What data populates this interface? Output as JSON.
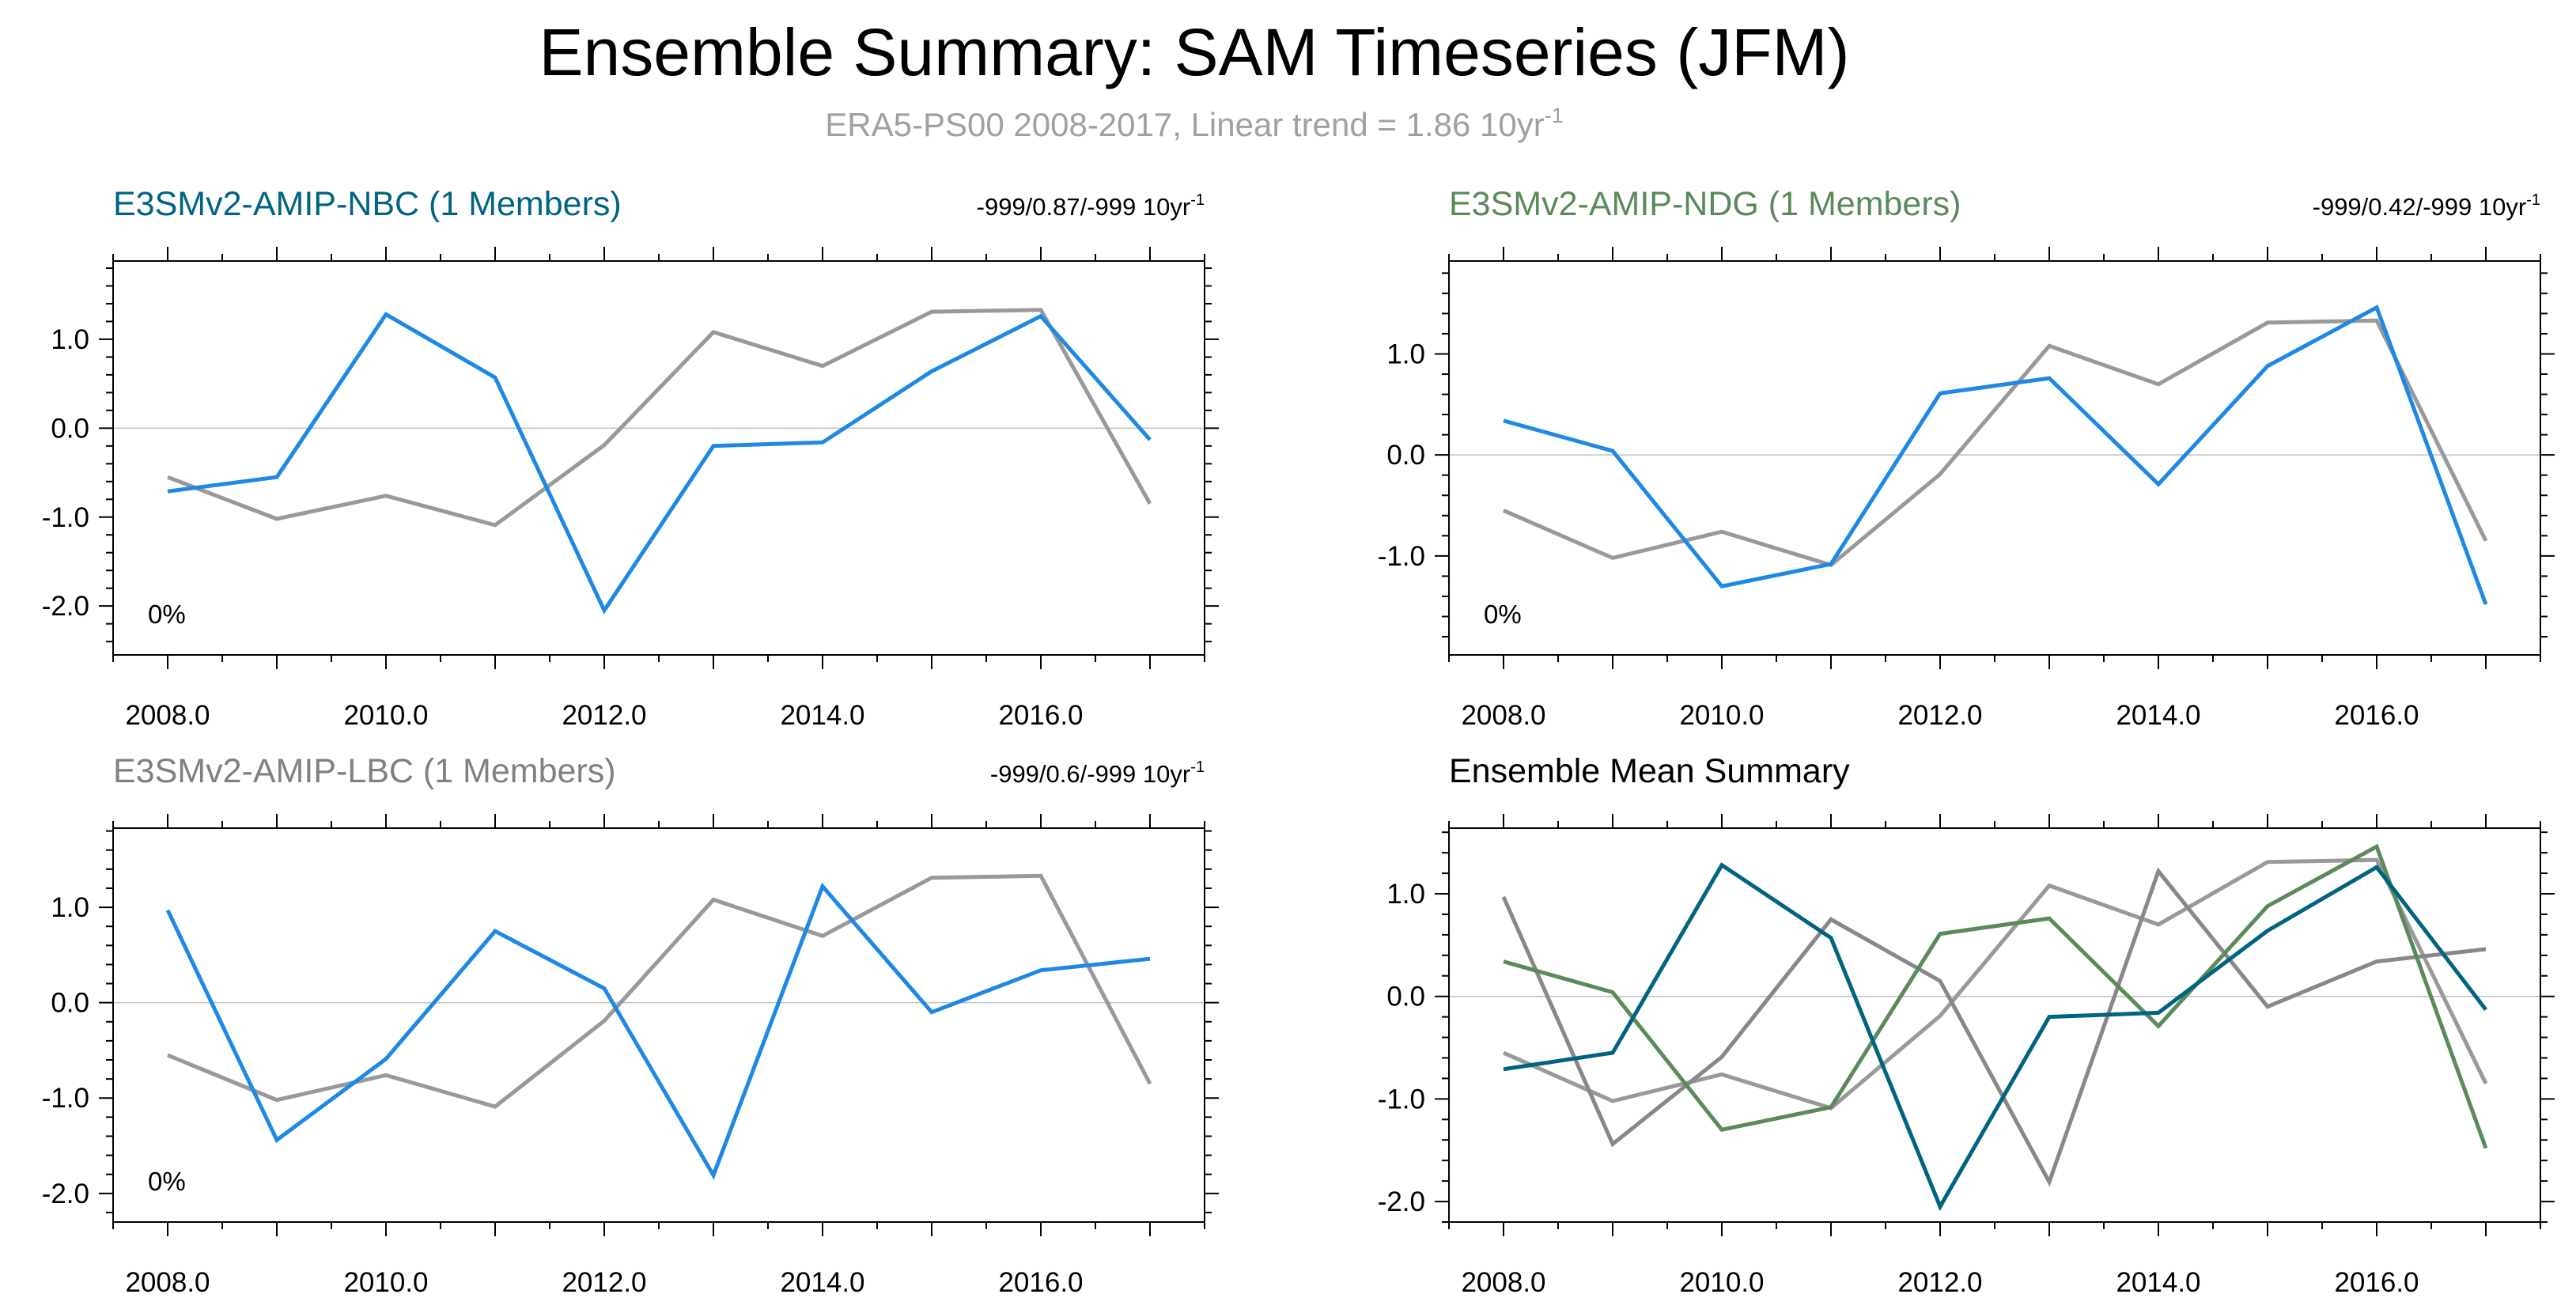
{
  "title": "Ensemble Summary: SAM Timeseries (JFM)",
  "subtitle": "ERA5-PS00 2008-2017, Linear trend = 1.86 10yr",
  "subtitle_sup": "-1",
  "colors": {
    "nbc": "#006480",
    "ndg": "#5a8a5a",
    "lbc": "#808080",
    "model_line": "#1e88e5",
    "obs_line": "#999999",
    "mean_lbc": "#888888",
    "axis": "#000000",
    "zero_line": "#c0c0c0"
  },
  "chart_data": [
    {
      "type": "line",
      "title": "E3SMv2-AMIP-NBC (1 Members)",
      "title_color_key": "nbc",
      "trend_label": "-999/0.87/-999 10yr",
      "trend_sup": "-1",
      "percent_label": "0%",
      "x": [
        2008,
        2009,
        2010,
        2011,
        2012,
        2013,
        2014,
        2015,
        2016,
        2017
      ],
      "xlim": [
        2007.5,
        2017.5
      ],
      "ylim": [
        -2.55,
        1.88
      ],
      "xticks": [
        2008,
        2010,
        2012,
        2014,
        2016
      ],
      "xtick_labels": [
        "2008.0",
        "2010.0",
        "2012.0",
        "2014.0",
        "2016.0"
      ],
      "yticks": [
        1.0,
        0.0,
        -1.0,
        -2.0
      ],
      "ytick_labels": [
        "1.0",
        "0.0",
        "-1.0",
        "-2.0"
      ],
      "series": [
        {
          "name": "ERA5-PS00",
          "color_key": "obs_line",
          "values": [
            -0.55,
            -1.02,
            -0.76,
            -1.09,
            -0.19,
            1.08,
            0.7,
            1.31,
            1.33,
            -0.85
          ]
        },
        {
          "name": "E3SMv2-AMIP-NBC",
          "color_key": "model_line",
          "values": [
            -0.71,
            -0.55,
            1.28,
            0.57,
            -2.05,
            -0.2,
            -0.16,
            0.64,
            1.26,
            -0.13
          ]
        }
      ]
    },
    {
      "type": "line",
      "title": "E3SMv2-AMIP-NDG (1 Members)",
      "title_color_key": "ndg",
      "trend_label": "-999/0.42/-999 10yr",
      "trend_sup": "-1",
      "percent_label": "0%",
      "x": [
        2008,
        2009,
        2010,
        2011,
        2012,
        2013,
        2014,
        2015,
        2016,
        2017
      ],
      "xlim": [
        2007.5,
        2017.5
      ],
      "ylim": [
        -1.98,
        1.92
      ],
      "xticks": [
        2008,
        2010,
        2012,
        2014,
        2016
      ],
      "xtick_labels": [
        "2008.0",
        "2010.0",
        "2012.0",
        "2014.0",
        "2016.0"
      ],
      "yticks": [
        1.0,
        0.0,
        -1.0
      ],
      "ytick_labels": [
        "1.0",
        "0.0",
        "-1.0"
      ],
      "series": [
        {
          "name": "ERA5-PS00",
          "color_key": "obs_line",
          "values": [
            -0.55,
            -1.02,
            -0.76,
            -1.09,
            -0.19,
            1.08,
            0.7,
            1.31,
            1.33,
            -0.85
          ]
        },
        {
          "name": "E3SMv2-AMIP-NDG",
          "color_key": "model_line",
          "values": [
            0.34,
            0.04,
            -1.3,
            -1.08,
            0.61,
            0.76,
            -0.29,
            0.88,
            1.46,
            -1.48
          ]
        }
      ]
    },
    {
      "type": "line",
      "title": "E3SMv2-AMIP-LBC (1 Members)",
      "title_color_key": "lbc",
      "trend_label": "-999/0.6/-999 10yr",
      "trend_sup": "-1",
      "percent_label": "0%",
      "x": [
        2008,
        2009,
        2010,
        2011,
        2012,
        2013,
        2014,
        2015,
        2016,
        2017
      ],
      "xlim": [
        2007.5,
        2017.5
      ],
      "ylim": [
        -2.3,
        1.83
      ],
      "xticks": [
        2008,
        2010,
        2012,
        2014,
        2016
      ],
      "xtick_labels": [
        "2008.0",
        "2010.0",
        "2012.0",
        "2014.0",
        "2016.0"
      ],
      "yticks": [
        1.0,
        0.0,
        -1.0,
        -2.0
      ],
      "ytick_labels": [
        "1.0",
        "0.0",
        "-1.0",
        "-2.0"
      ],
      "series": [
        {
          "name": "ERA5-PS00",
          "color_key": "obs_line",
          "values": [
            -0.55,
            -1.02,
            -0.76,
            -1.09,
            -0.19,
            1.08,
            0.7,
            1.31,
            1.33,
            -0.85
          ]
        },
        {
          "name": "E3SMv2-AMIP-LBC",
          "color_key": "model_line",
          "values": [
            0.97,
            -1.44,
            -0.59,
            0.75,
            0.15,
            -1.81,
            1.22,
            -0.1,
            0.34,
            0.46
          ]
        }
      ]
    },
    {
      "type": "line",
      "title": "Ensemble Mean Summary",
      "title_color_key": "axis",
      "trend_label": "",
      "trend_sup": "",
      "percent_label": "",
      "x": [
        2008,
        2009,
        2010,
        2011,
        2012,
        2013,
        2014,
        2015,
        2016,
        2017
      ],
      "xlim": [
        2007.5,
        2017.5
      ],
      "ylim": [
        -2.2,
        1.64
      ],
      "xticks": [
        2008,
        2010,
        2012,
        2014,
        2016
      ],
      "xtick_labels": [
        "2008.0",
        "2010.0",
        "2012.0",
        "2014.0",
        "2016.0"
      ],
      "yticks": [
        1.0,
        0.0,
        -1.0,
        -2.0
      ],
      "ytick_labels": [
        "1.0",
        "0.0",
        "-1.0",
        "-2.0"
      ],
      "series": [
        {
          "name": "ERA5-PS00",
          "color_key": "obs_line",
          "values": [
            -0.55,
            -1.02,
            -0.76,
            -1.09,
            -0.19,
            1.08,
            0.7,
            1.31,
            1.33,
            -0.85
          ]
        },
        {
          "name": "E3SMv2-AMIP-LBC",
          "color_key": "mean_lbc",
          "values": [
            0.97,
            -1.44,
            -0.59,
            0.75,
            0.15,
            -1.81,
            1.22,
            -0.1,
            0.34,
            0.46
          ]
        },
        {
          "name": "E3SMv2-AMIP-NDG",
          "color_key": "ndg",
          "values": [
            0.34,
            0.04,
            -1.3,
            -1.08,
            0.61,
            0.76,
            -0.29,
            0.88,
            1.46,
            -1.48
          ]
        },
        {
          "name": "E3SMv2-AMIP-NBC",
          "color_key": "nbc",
          "values": [
            -0.71,
            -0.55,
            1.28,
            0.57,
            -2.05,
            -0.2,
            -0.16,
            0.64,
            1.26,
            -0.13
          ]
        }
      ]
    }
  ]
}
